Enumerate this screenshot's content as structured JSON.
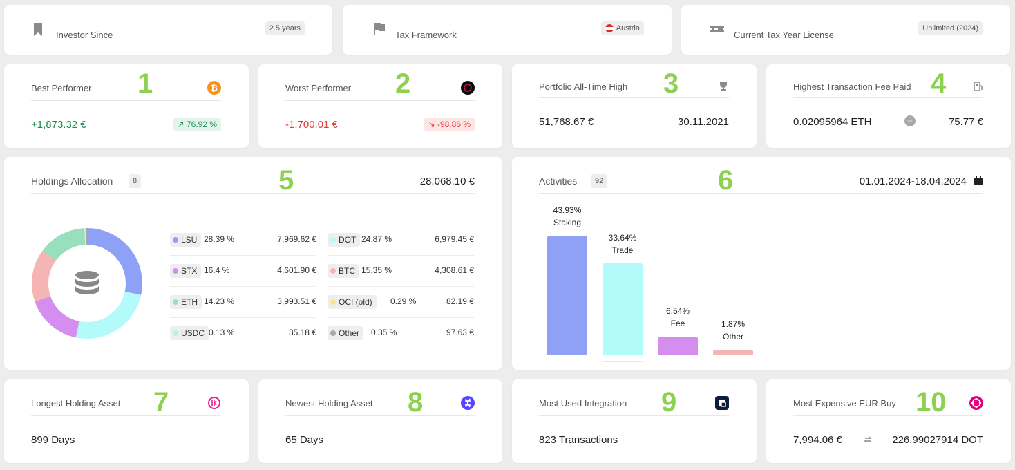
{
  "top": [
    {
      "label": "Investor Since",
      "badge": "2.5 years",
      "icon": "bookmark-icon"
    },
    {
      "label": "Tax Framework",
      "badge": "Austria",
      "icon": "flag-icon"
    },
    {
      "label": "Current Tax Year License",
      "badge": "Unlimited (2024)",
      "icon": "ticket-icon"
    }
  ],
  "best": {
    "marker": "1",
    "title": "Best Performer",
    "value": "+1,873.32 €",
    "change": "↗ 76.92 %",
    "icon": "bitcoin-icon"
  },
  "worst": {
    "marker": "2",
    "title": "Worst Performer",
    "value": "-1,700.01 €",
    "change": "↘ -98.86 %",
    "icon": "token-icon"
  },
  "ath": {
    "marker": "3",
    "title": "Portfolio All-Time High",
    "value": "51,768.67 €",
    "date": "30.11.2021",
    "icon": "trophy-icon"
  },
  "fee": {
    "marker": "4",
    "title": "Highest Transaction Fee Paid",
    "amount": "0.02095964 ETH",
    "value": "75.77 €",
    "icon": "fuel-icon"
  },
  "holdings": {
    "marker": "5",
    "title": "Holdings Allocation",
    "count": "8",
    "total": "28,068.10 €",
    "items": [
      {
        "name": "LSU",
        "pct": "28.39 %",
        "value": "7,969.62 €",
        "color": "#8ea1f7",
        "share": 28.39
      },
      {
        "name": "DOT",
        "pct": "24.87 %",
        "value": "6,979.45 €",
        "color": "#b3fbfa",
        "share": 24.87
      },
      {
        "name": "STX",
        "pct": "16.4 %",
        "value": "4,601.90 €",
        "color": "#d58ef0",
        "share": 16.4
      },
      {
        "name": "BTC",
        "pct": "15.35 %",
        "value": "4,308.61 €",
        "color": "#f5b5b5",
        "share": 15.35
      },
      {
        "name": "ETH",
        "pct": "14.23 %",
        "value": "3,993.51 €",
        "color": "#97dfbd",
        "share": 14.23
      },
      {
        "name": "OCI (old)",
        "pct": "0.29 %",
        "value": "82.19 €",
        "color": "#f6e58f",
        "share": 0.29
      },
      {
        "name": "USDC",
        "pct": "0.13 %",
        "value": "35.18 €",
        "color": "#b8f5d2",
        "share": 0.13
      },
      {
        "name": "Other",
        "pct": "0.35 %",
        "value": "97.63 €",
        "color": "#a9a9a9",
        "share": 0.35
      }
    ]
  },
  "activities": {
    "marker": "6",
    "title": "Activities",
    "count": "92",
    "range": "01.01.2024-18.04.2024",
    "bars": [
      {
        "pct": "43.93%",
        "label": "Staking",
        "value": 43.93,
        "color": "#8ea1f7"
      },
      {
        "pct": "33.64%",
        "label": "Trade",
        "value": 33.64,
        "color": "#b3fbfa"
      },
      {
        "pct": "6.54%",
        "label": "Fee",
        "value": 6.54,
        "color": "#d58ef0"
      },
      {
        "pct": "1.87%",
        "label": "Other",
        "value": 1.87,
        "color": "#f5b5b5"
      }
    ]
  },
  "longest": {
    "marker": "7",
    "title": "Longest Holding Asset",
    "value": "899 Days",
    "icon": "asset-icon"
  },
  "newest": {
    "marker": "8",
    "title": "Newest Holding Asset",
    "value": "65 Days",
    "icon": "asset-icon"
  },
  "integration": {
    "marker": "9",
    "title": "Most Used Integration",
    "value": "823 Transactions",
    "icon": "integration-icon"
  },
  "expensive": {
    "marker": "10",
    "title": "Most Expensive EUR Buy",
    "eur": "7,994.06 €",
    "amount": "226.99027914 DOT",
    "icon": "polkadot-icon"
  },
  "chart_data": [
    {
      "type": "pie",
      "categories": [
        "LSU",
        "DOT",
        "STX",
        "BTC",
        "ETH",
        "OCI (old)",
        "USDC",
        "Other"
      ],
      "values": [
        28.39,
        24.87,
        16.4,
        15.35,
        14.23,
        0.29,
        0.13,
        0.35
      ]
    },
    {
      "type": "bar",
      "categories": [
        "Staking",
        "Trade",
        "Fee",
        "Other"
      ],
      "values": [
        43.93,
        33.64,
        6.54,
        1.87
      ]
    }
  ]
}
